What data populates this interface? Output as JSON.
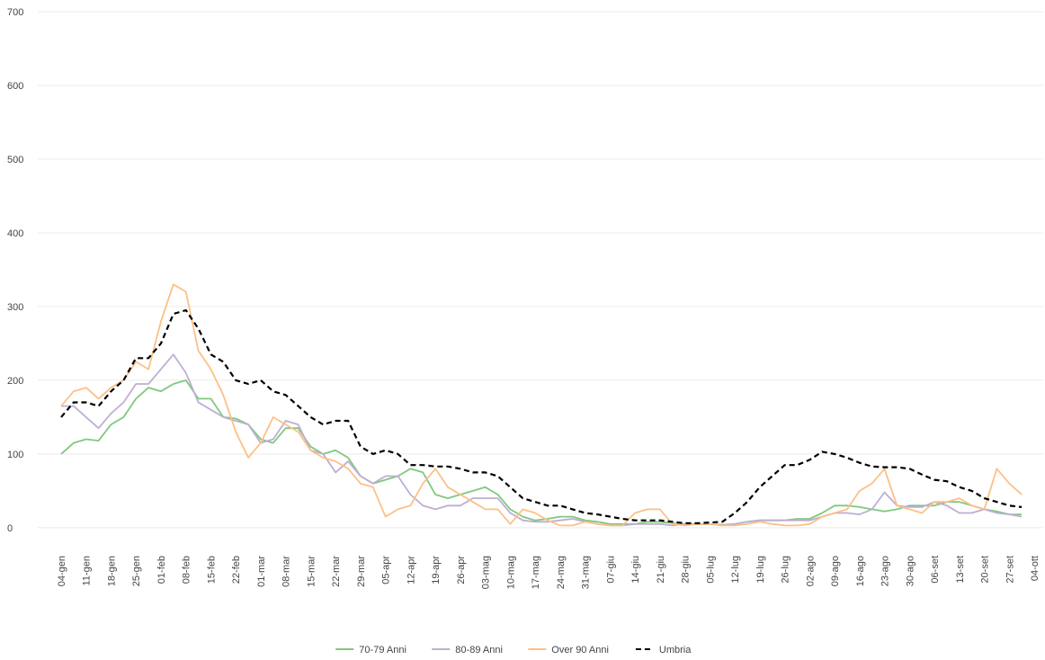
{
  "chart_data": {
    "type": "line",
    "categories": [
      "04-gen",
      null,
      "11-gen",
      null,
      "18-gen",
      null,
      "25-gen",
      null,
      "01-feb",
      null,
      "08-feb",
      null,
      "15-feb",
      null,
      "22-feb",
      null,
      "01-mar",
      null,
      "08-mar",
      null,
      "15-mar",
      null,
      "22-mar",
      null,
      "29-mar",
      null,
      "05-apr",
      null,
      "12-apr",
      null,
      "19-apr",
      null,
      "26-apr",
      null,
      "03-mag",
      null,
      "10-mag",
      null,
      "17-mag",
      null,
      "24-mag",
      null,
      "31-mag",
      null,
      "07-giu",
      null,
      "14-giu",
      null,
      "21-giu",
      null,
      "28-giu",
      null,
      "05-lug",
      null,
      "12-lug",
      null,
      "19-lug",
      null,
      "26-lug",
      null,
      "02-ago",
      null,
      "09-ago",
      null,
      "16-ago",
      null,
      "23-ago",
      null,
      "30-ago",
      null,
      "06-set",
      null,
      "13-set",
      null,
      "20-set",
      null,
      "27-set",
      null,
      "04-ott"
    ],
    "series": [
      {
        "name": "70-79 Anni",
        "color": "#7fc97f",
        "dashed": false,
        "values": [
          100,
          115,
          120,
          118,
          140,
          150,
          175,
          190,
          185,
          195,
          200,
          175,
          175,
          150,
          148,
          140,
          120,
          115,
          135,
          135,
          110,
          100,
          105,
          95,
          70,
          60,
          65,
          70,
          80,
          75,
          45,
          40,
          45,
          50,
          55,
          45,
          25,
          15,
          10,
          12,
          15,
          15,
          10,
          8,
          5,
          5,
          5,
          8,
          8,
          6,
          5,
          5,
          5,
          4,
          5,
          8,
          10,
          10,
          10,
          12,
          12,
          20,
          30,
          30,
          28,
          25,
          22,
          25,
          30,
          30,
          30,
          35,
          35,
          30,
          25,
          22,
          18,
          18,
          null
        ]
      },
      {
        "name": "80-89 Anni",
        "color": "#beaed4",
        "dashed": false,
        "values": [
          165,
          165,
          150,
          135,
          155,
          170,
          195,
          195,
          215,
          235,
          210,
          170,
          160,
          150,
          145,
          140,
          115,
          120,
          145,
          140,
          105,
          100,
          75,
          90,
          70,
          60,
          70,
          70,
          45,
          30,
          25,
          30,
          30,
          40,
          40,
          40,
          20,
          10,
          8,
          8,
          10,
          12,
          8,
          5,
          3,
          3,
          5,
          5,
          5,
          3,
          5,
          5,
          5,
          3,
          5,
          8,
          10,
          10,
          10,
          10,
          10,
          15,
          20,
          20,
          18,
          25,
          48,
          30,
          28,
          28,
          35,
          30,
          20,
          20,
          25,
          20,
          18,
          15,
          null
        ]
      },
      {
        "name": "Over 90 Anni",
        "color": "#fdc086",
        "dashed": false,
        "values": [
          165,
          185,
          190,
          175,
          190,
          200,
          225,
          215,
          280,
          330,
          320,
          240,
          215,
          180,
          130,
          95,
          115,
          150,
          140,
          130,
          105,
          95,
          90,
          80,
          60,
          55,
          15,
          25,
          30,
          60,
          80,
          55,
          45,
          35,
          25,
          25,
          5,
          25,
          20,
          10,
          3,
          3,
          8,
          5,
          3,
          3,
          20,
          25,
          25,
          5,
          3,
          5,
          5,
          3,
          3,
          5,
          8,
          5,
          3,
          3,
          5,
          15,
          20,
          25,
          50,
          60,
          80,
          30,
          25,
          20,
          35,
          35,
          40,
          30,
          25,
          80,
          60,
          45,
          null
        ]
      },
      {
        "name": "Umbria",
        "color": "#000000",
        "dashed": true,
        "values": [
          150,
          170,
          170,
          165,
          185,
          200,
          230,
          230,
          250,
          290,
          295,
          270,
          235,
          225,
          200,
          195,
          200,
          185,
          180,
          165,
          150,
          140,
          145,
          145,
          110,
          100,
          105,
          100,
          85,
          85,
          83,
          83,
          80,
          75,
          75,
          70,
          55,
          40,
          35,
          30,
          30,
          25,
          20,
          18,
          15,
          12,
          10,
          10,
          10,
          8,
          6,
          6,
          7,
          8,
          20,
          35,
          55,
          70,
          85,
          85,
          92,
          103,
          100,
          95,
          88,
          83,
          82,
          82,
          80,
          72,
          65,
          63,
          55,
          50,
          40,
          35,
          30,
          28,
          null
        ]
      }
    ],
    "ylim": [
      -27,
      700
    ],
    "yticks": [
      0,
      100,
      200,
      300,
      400,
      500,
      600,
      700
    ],
    "grid": true,
    "legend": "bottom"
  }
}
